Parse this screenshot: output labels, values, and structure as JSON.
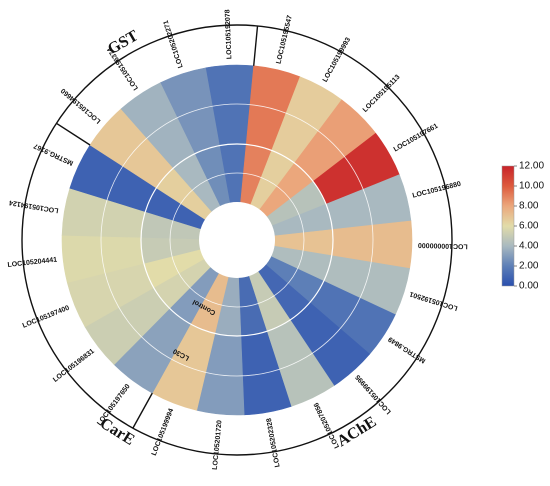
{
  "chart_data": {
    "type": "heatmap",
    "layout": "circular",
    "rings": [
      "Control",
      "LC30"
    ],
    "genes": [
      {
        "name": "MSTRG.9849",
        "group": "GST",
        "control": 2.0,
        "lc30": 1.5
      },
      {
        "name": "LOC105199995",
        "group": "GST",
        "control": 1.0,
        "lc30": 0.8
      },
      {
        "name": "LOC105207856",
        "group": "GST",
        "control": 5.0,
        "lc30": 4.5
      },
      {
        "name": "LOC105202328",
        "group": "GST",
        "control": 1.2,
        "lc30": 0.8
      },
      {
        "name": "LOC105201720",
        "group": "GST",
        "control": 3.6,
        "lc30": 3.0
      },
      {
        "name": "LOC105199994",
        "group": "GST",
        "control": 7.2,
        "lc30": 6.8
      },
      {
        "name": "LOC105197650",
        "group": "AChE",
        "control": 3.0,
        "lc30": 3.2
      },
      {
        "name": "LOC105196831",
        "group": "AChE",
        "control": 5.5,
        "lc30": 5.2
      },
      {
        "name": "LOC105197400",
        "group": "AChE",
        "control": 6.0,
        "lc30": 5.6
      },
      {
        "name": "LOC105204441",
        "group": "AChE",
        "control": 5.0,
        "lc30": 5.8
      },
      {
        "name": "LOC105194124",
        "group": "AChE",
        "control": 4.8,
        "lc30": 5.4
      },
      {
        "name": "MSTRG.9167",
        "group": "AChE",
        "control": 0.8,
        "lc30": 0.8
      },
      {
        "name": "LOC105194660",
        "group": "CarE",
        "control": 6.5,
        "lc30": 6.8
      },
      {
        "name": "LOC105196374",
        "group": "CarE",
        "control": 4.0,
        "lc30": 3.8
      },
      {
        "name": "LOC105202271",
        "group": "CarE",
        "control": 2.5,
        "lc30": 2.7
      },
      {
        "name": "LOC105192078",
        "group": "CarE",
        "control": 1.5,
        "lc30": 1.5
      },
      {
        "name": "LOC105195547",
        "group": "GST",
        "control": 9.0,
        "lc30": 9.2
      },
      {
        "name": "LOC105199993",
        "group": "GST",
        "control": 6.5,
        "lc30": 6.6
      },
      {
        "name": "LOC105195113",
        "group": "GST",
        "control": 8.0,
        "lc30": 8.2
      },
      {
        "name": "LOC105197661",
        "group": "GST",
        "control": 4.5,
        "lc30": 11.5
      },
      {
        "name": "LOC105196880",
        "group": "GST",
        "control": 4.0,
        "lc30": 4.0
      },
      {
        "name": "LOC100000000",
        "group": "GST",
        "control": 7.0,
        "lc30": 7.2
      },
      {
        "name": "LOC105192501",
        "group": "GST",
        "control": 4.2,
        "lc30": 4.2
      }
    ],
    "groups": [
      {
        "name": "GST"
      },
      {
        "name": "AChE"
      },
      {
        "name": "CarE"
      }
    ],
    "colorbar": {
      "min": 0,
      "max": 12,
      "ticks": [
        "0.00",
        "2.00",
        "4.00",
        "6.00",
        "8.00",
        "10.00",
        "12.00"
      ],
      "colors": [
        "#2a4fae",
        "#5d7fb7",
        "#a9b9c0",
        "#e2dca9",
        "#eba77c",
        "#dd5a3d",
        "#c8232a"
      ]
    }
  }
}
